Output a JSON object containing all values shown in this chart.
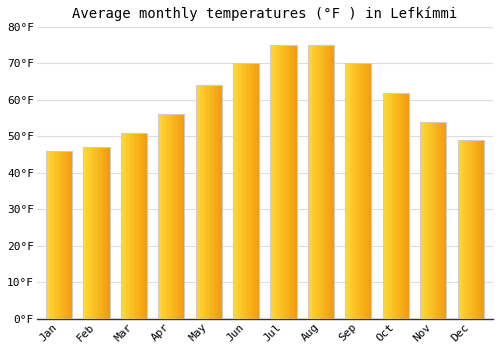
{
  "title": "Average monthly temperatures (°F ) in Lefkímmi",
  "months": [
    "Jan",
    "Feb",
    "Mar",
    "Apr",
    "May",
    "Jun",
    "Jul",
    "Aug",
    "Sep",
    "Oct",
    "Nov",
    "Dec"
  ],
  "values": [
    46,
    47,
    51,
    56,
    64,
    70,
    75,
    75,
    70,
    62,
    54,
    49
  ],
  "bar_color_left": "#FFCC33",
  "bar_color_right": "#F5A000",
  "bar_edge_color": "#cccccc",
  "ylim": [
    0,
    80
  ],
  "yticks": [
    0,
    10,
    20,
    30,
    40,
    50,
    60,
    70,
    80
  ],
  "ytick_labels": [
    "0°F",
    "10°F",
    "20°F",
    "30°F",
    "40°F",
    "50°F",
    "60°F",
    "70°F",
    "80°F"
  ],
  "background_color": "#ffffff",
  "grid_color": "#dddddd",
  "title_fontsize": 10,
  "tick_fontsize": 8,
  "figsize": [
    5.0,
    3.5
  ],
  "dpi": 100
}
